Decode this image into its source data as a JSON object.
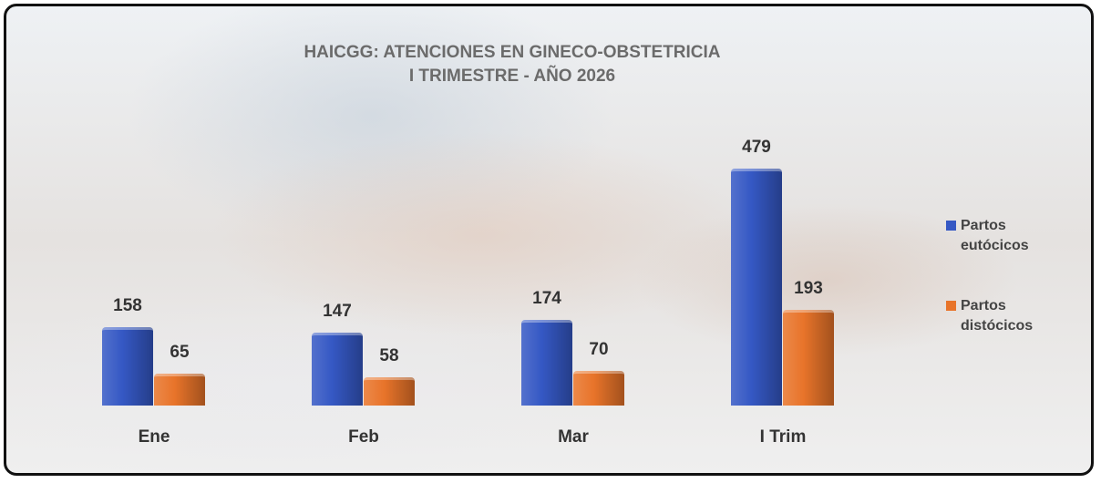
{
  "chart_data": {
    "type": "bar",
    "title": "HAICGG: ATENCIONES EN GINECO-OBSTETRICIA",
    "subtitle": "I TRIMESTRE - AÑO 2026",
    "categories": [
      "Ene",
      "Feb",
      "Mar",
      "I Trim"
    ],
    "series": [
      {
        "name": "Partos eutócicos",
        "color": "#3558c4",
        "values": [
          158,
          147,
          174,
          479
        ]
      },
      {
        "name": "Partos distócicos",
        "color": "#e8742a",
        "values": [
          65,
          58,
          70,
          193
        ]
      }
    ]
  }
}
